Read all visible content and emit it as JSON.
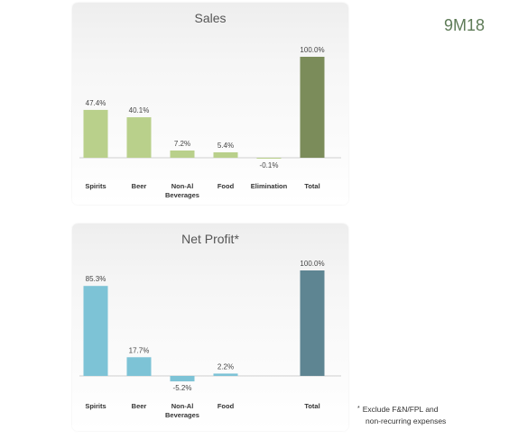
{
  "period_label": "9M18",
  "footnote": {
    "marker": "*",
    "line1": "Exclude F&N/FPL and",
    "line2": "non-recurring expenses"
  },
  "colors": {
    "sales_bar": "#b9d08b",
    "sales_total": "#7b8c5a",
    "profit_bar": "#7dc3d6",
    "profit_total": "#5e8592"
  },
  "chart_data": [
    {
      "type": "bar",
      "title": "Sales",
      "categories": [
        "Spirits",
        "Beer",
        "Non-Al Beverages",
        "Food",
        "Elimination",
        "Total"
      ],
      "category_lines": [
        [
          "Spirits"
        ],
        [
          "Beer"
        ],
        [
          "Non-Al",
          "Beverages"
        ],
        [
          "Food"
        ],
        [
          "Elimination"
        ],
        [
          "Total"
        ]
      ],
      "values": [
        47.4,
        40.1,
        7.2,
        5.4,
        -0.1,
        100.0
      ],
      "data_labels": [
        "47.4%",
        "40.1%",
        "7.2%",
        "5.4%",
        "-0.1%",
        "100.0%"
      ],
      "unit": "%",
      "ylim": [
        -10,
        100
      ],
      "grid": false,
      "legend": "none"
    },
    {
      "type": "bar",
      "title": "Net Profit*",
      "categories": [
        "Spirits",
        "Beer",
        "Non-Al Beverages",
        "Food",
        "",
        "Total"
      ],
      "category_lines": [
        [
          "Spirits"
        ],
        [
          "Beer"
        ],
        [
          "Non-Al",
          "Beverages"
        ],
        [
          "Food"
        ],
        [],
        [
          "Total"
        ]
      ],
      "values": [
        85.3,
        17.7,
        -5.2,
        2.2,
        null,
        100.0
      ],
      "data_labels": [
        "85.3%",
        "17.7%",
        "-5.2%",
        "2.2%",
        "",
        "100.0%"
      ],
      "unit": "%",
      "ylim": [
        -10,
        100
      ],
      "grid": false,
      "legend": "none"
    }
  ]
}
